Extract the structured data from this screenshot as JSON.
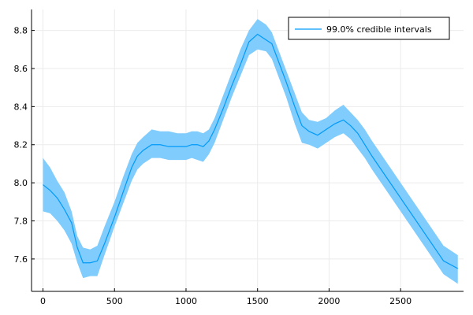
{
  "chart_data": {
    "type": "line",
    "title": "",
    "xlabel": "",
    "ylabel": "",
    "xlim": [
      -80,
      2940
    ],
    "ylim": [
      7.43,
      8.91
    ],
    "xticks": [
      0,
      500,
      1000,
      1500,
      2000,
      2500
    ],
    "xtick_labels": [
      "0",
      "500",
      "1000",
      "1500",
      "2000",
      "2500"
    ],
    "yticks": [
      7.6,
      7.8,
      8.0,
      8.2,
      8.4,
      8.6,
      8.8
    ],
    "ytick_labels": [
      "7.6",
      "7.8",
      "8.0",
      "8.2",
      "8.4",
      "8.6",
      "8.8"
    ],
    "grid": true,
    "legend_position": "top-right",
    "colors": {
      "line": "#009AFA",
      "band": "#80CCFC",
      "grid": "#EBEBEB",
      "axis": "#000000"
    },
    "series": [
      {
        "name": "99.0% credible intervals",
        "x": [
          0,
          50,
          100,
          150,
          200,
          240,
          280,
          330,
          380,
          430,
          500,
          560,
          620,
          660,
          700,
          760,
          820,
          880,
          940,
          1000,
          1040,
          1080,
          1120,
          1160,
          1200,
          1260,
          1320,
          1380,
          1440,
          1500,
          1560,
          1600,
          1650,
          1700,
          1760,
          1810,
          1860,
          1920,
          1980,
          2040,
          2100,
          2150,
          2200,
          2250,
          2300,
          2400,
          2500,
          2600,
          2700,
          2800,
          2900
        ],
        "y": [
          7.99,
          7.96,
          7.92,
          7.86,
          7.79,
          7.66,
          7.58,
          7.58,
          7.59,
          7.68,
          7.82,
          7.95,
          8.08,
          8.14,
          8.17,
          8.2,
          8.2,
          8.19,
          8.19,
          8.19,
          8.2,
          8.2,
          8.19,
          8.22,
          8.28,
          8.39,
          8.51,
          8.62,
          8.74,
          8.78,
          8.75,
          8.73,
          8.63,
          8.53,
          8.4,
          8.3,
          8.27,
          8.25,
          8.28,
          8.31,
          8.33,
          8.3,
          8.26,
          8.2,
          8.14,
          8.03,
          7.92,
          7.81,
          7.7,
          7.59,
          7.55
        ],
        "lower": [
          7.85,
          7.84,
          7.8,
          7.75,
          7.68,
          7.58,
          7.5,
          7.51,
          7.51,
          7.62,
          7.77,
          7.89,
          8.01,
          8.07,
          8.1,
          8.13,
          8.13,
          8.12,
          8.12,
          8.12,
          8.13,
          8.12,
          8.11,
          8.15,
          8.21,
          8.33,
          8.45,
          8.56,
          8.67,
          8.7,
          8.69,
          8.65,
          8.55,
          8.45,
          8.31,
          8.21,
          8.2,
          8.18,
          8.21,
          8.24,
          8.26,
          8.23,
          8.18,
          8.13,
          8.07,
          7.96,
          7.85,
          7.74,
          7.63,
          7.52,
          7.47
        ],
        "upper": [
          8.13,
          8.08,
          8.01,
          7.95,
          7.85,
          7.72,
          7.66,
          7.65,
          7.67,
          7.77,
          7.9,
          8.03,
          8.15,
          8.21,
          8.24,
          8.28,
          8.27,
          8.27,
          8.26,
          8.26,
          8.27,
          8.27,
          8.26,
          8.28,
          8.34,
          8.46,
          8.58,
          8.7,
          8.8,
          8.86,
          8.83,
          8.79,
          8.69,
          8.59,
          8.47,
          8.37,
          8.33,
          8.32,
          8.34,
          8.38,
          8.41,
          8.37,
          8.33,
          8.28,
          8.22,
          8.11,
          8.0,
          7.89,
          7.78,
          7.67,
          7.62
        ]
      }
    ]
  }
}
